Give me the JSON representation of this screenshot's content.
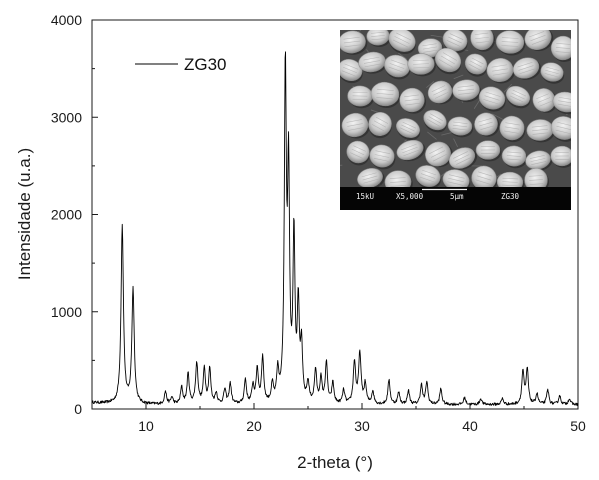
{
  "chart_data": {
    "type": "line",
    "title": "",
    "xlabel": "2-theta (°)",
    "ylabel": "Intensidade (u.a.)",
    "xlim": [
      5,
      50
    ],
    "ylim": [
      0,
      4000
    ],
    "xticks": [
      10,
      20,
      30,
      40,
      50
    ],
    "yticks": [
      0,
      1000,
      2000,
      3000,
      4000
    ],
    "grid": false,
    "legend_position": "top-left",
    "series": [
      {
        "name": "ZG30",
        "color": "#000000",
        "baseline": 45,
        "peaks": [
          [
            7.8,
            1840,
            0.13
          ],
          [
            8.8,
            1180,
            0.13
          ],
          [
            11.8,
            130,
            0.12
          ],
          [
            12.4,
            70,
            0.12
          ],
          [
            13.3,
            170,
            0.12
          ],
          [
            13.9,
            310,
            0.12
          ],
          [
            14.7,
            420,
            0.13
          ],
          [
            15.4,
            360,
            0.12
          ],
          [
            15.9,
            360,
            0.12
          ],
          [
            16.5,
            110,
            0.12
          ],
          [
            17.3,
            150,
            0.12
          ],
          [
            17.8,
            210,
            0.12
          ],
          [
            19.2,
            250,
            0.12
          ],
          [
            19.9,
            180,
            0.12
          ],
          [
            20.3,
            350,
            0.12
          ],
          [
            20.8,
            470,
            0.12
          ],
          [
            21.7,
            180,
            0.12
          ],
          [
            22.2,
            300,
            0.12
          ],
          [
            22.9,
            3380,
            0.11
          ],
          [
            23.2,
            2300,
            0.11
          ],
          [
            23.7,
            1700,
            0.11
          ],
          [
            24.1,
            980,
            0.11
          ],
          [
            24.4,
            560,
            0.11
          ],
          [
            25.0,
            200,
            0.12
          ],
          [
            25.7,
            340,
            0.12
          ],
          [
            26.2,
            250,
            0.12
          ],
          [
            26.7,
            420,
            0.12
          ],
          [
            27.3,
            210,
            0.12
          ],
          [
            28.3,
            140,
            0.12
          ],
          [
            29.3,
            430,
            0.13
          ],
          [
            29.8,
            520,
            0.13
          ],
          [
            30.3,
            200,
            0.12
          ],
          [
            31.0,
            130,
            0.12
          ],
          [
            32.5,
            250,
            0.12
          ],
          [
            33.4,
            120,
            0.12
          ],
          [
            34.3,
            140,
            0.12
          ],
          [
            35.5,
            200,
            0.12
          ],
          [
            36.0,
            230,
            0.12
          ],
          [
            37.3,
            160,
            0.12
          ],
          [
            39.5,
            70,
            0.12
          ],
          [
            41.0,
            60,
            0.12
          ],
          [
            43.0,
            60,
            0.12
          ],
          [
            44.9,
            340,
            0.12
          ],
          [
            45.3,
            360,
            0.12
          ],
          [
            46.2,
            110,
            0.12
          ],
          [
            47.2,
            150,
            0.12
          ],
          [
            48.3,
            90,
            0.12
          ],
          [
            49.2,
            60,
            0.12
          ]
        ]
      }
    ],
    "inset_image": {
      "description_label": "ZG30",
      "scale_bar_text": "5μm",
      "info_text_1": "15kU",
      "info_text_2": "X5,000",
      "info_text_3": "ZG30"
    }
  },
  "colors": {
    "axis": "#1a1a1a",
    "line": "#000000",
    "sem_background": "#3a3a3a",
    "sem_particle": "#d8d8d8",
    "sem_bar": "#050505"
  }
}
